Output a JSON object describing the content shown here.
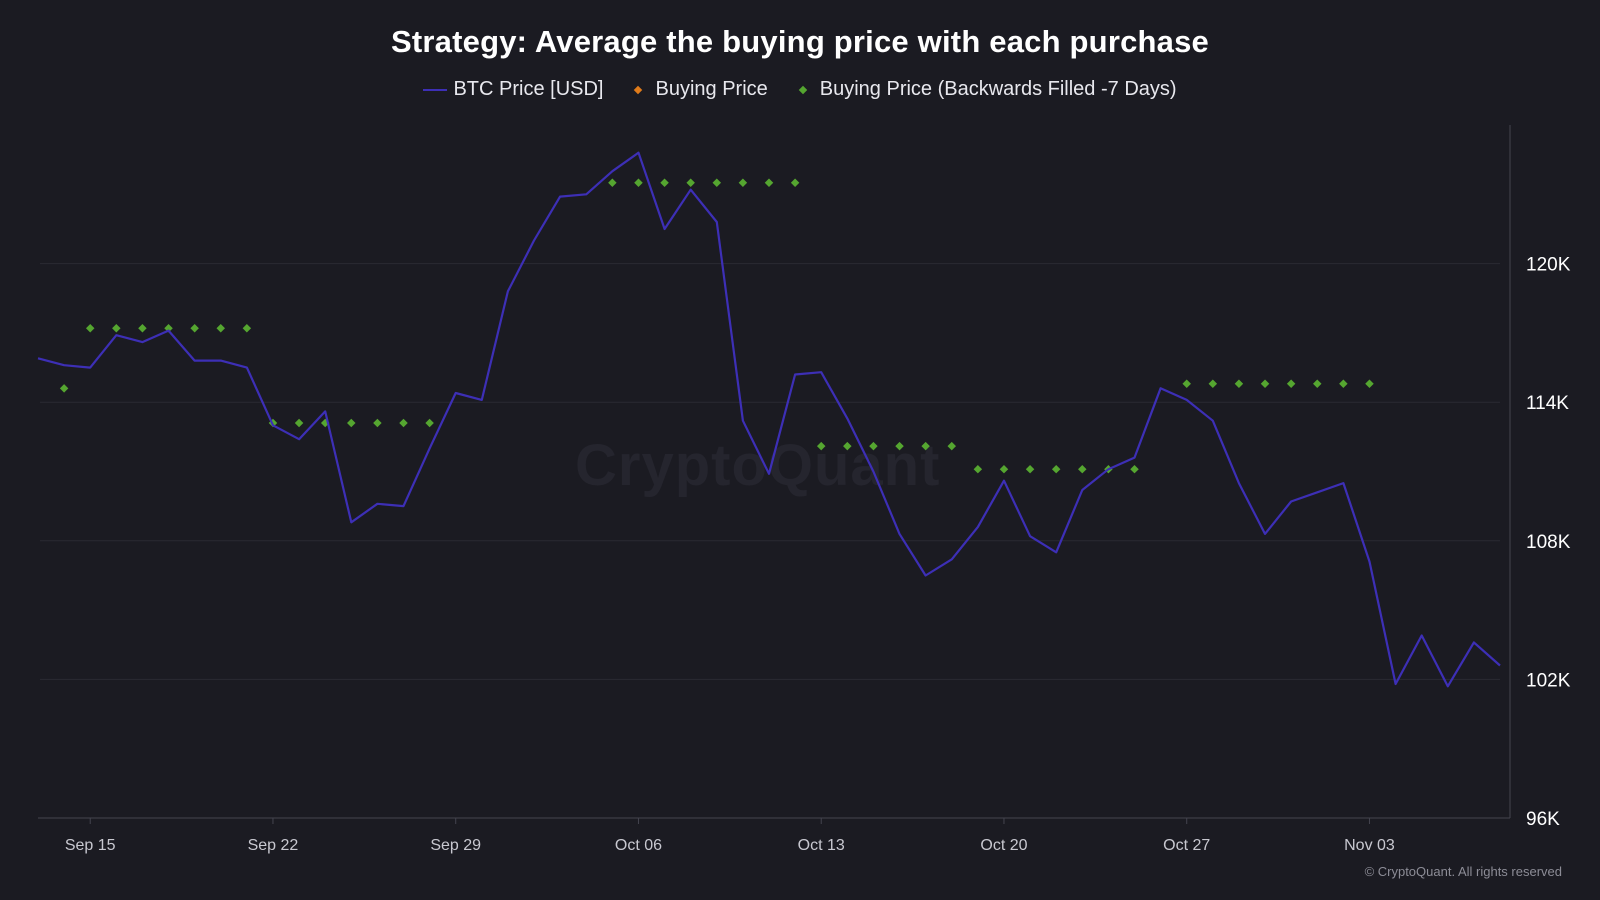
{
  "chart_data": {
    "type": "line",
    "title": "Strategy: Average the buying price with each purchase",
    "legend": {
      "placement": "top-center",
      "entries": [
        "BTC Price [USD]",
        "Buying Price",
        "Buying Price (Backwards Filled -7 Days)"
      ]
    },
    "colors": {
      "background": "#1b1b22",
      "btc_price": "#3d2fb6",
      "buying_price": "#e07b1a",
      "buying_price_filled": "#55a630",
      "grid": "#2b2b33",
      "axis": "#44444f",
      "tick_text": "#c8c8d0"
    },
    "x_axis": {
      "type": "date",
      "ticks": [
        "Sep 15",
        "Sep 22",
        "Sep 29",
        "Oct 06",
        "Oct 13",
        "Oct 20",
        "Oct 27",
        "Nov 03"
      ],
      "range": [
        "2025-09-13",
        "2025-11-08"
      ]
    },
    "y_axis": {
      "position": "right",
      "ticks": [
        "96K",
        "102K",
        "108K",
        "114K",
        "120K"
      ],
      "tick_values": [
        96000,
        102000,
        108000,
        114000,
        120000
      ],
      "range": [
        96000,
        126000
      ],
      "grid": true
    },
    "series": [
      {
        "name": "BTC Price [USD]",
        "style": "line",
        "x": [
          "2025-09-13",
          "2025-09-14",
          "2025-09-15",
          "2025-09-16",
          "2025-09-17",
          "2025-09-18",
          "2025-09-19",
          "2025-09-20",
          "2025-09-21",
          "2025-09-22",
          "2025-09-23",
          "2025-09-24",
          "2025-09-25",
          "2025-09-26",
          "2025-09-27",
          "2025-09-28",
          "2025-09-29",
          "2025-09-30",
          "2025-10-01",
          "2025-10-02",
          "2025-10-03",
          "2025-10-04",
          "2025-10-05",
          "2025-10-06",
          "2025-10-07",
          "2025-10-08",
          "2025-10-09",
          "2025-10-10",
          "2025-10-11",
          "2025-10-12",
          "2025-10-13",
          "2025-10-14",
          "2025-10-15",
          "2025-10-16",
          "2025-10-17",
          "2025-10-18",
          "2025-10-19",
          "2025-10-20",
          "2025-10-21",
          "2025-10-22",
          "2025-10-23",
          "2025-10-24",
          "2025-10-25",
          "2025-10-26",
          "2025-10-27",
          "2025-10-28",
          "2025-10-29",
          "2025-10-30",
          "2025-10-31",
          "2025-11-01",
          "2025-11-02",
          "2025-11-03",
          "2025-11-04",
          "2025-11-05",
          "2025-11-06",
          "2025-11-07",
          "2025-11-08"
        ],
        "values": [
          115900,
          115600,
          115500,
          116900,
          116600,
          117100,
          115800,
          115800,
          115500,
          113000,
          112400,
          113600,
          108800,
          109600,
          109500,
          112000,
          114400,
          114100,
          118800,
          121000,
          122900,
          123000,
          124000,
          124800,
          121500,
          123200,
          121800,
          113200,
          110900,
          115200,
          115300,
          113300,
          111000,
          108300,
          106500,
          107200,
          108600,
          110600,
          108200,
          107500,
          110200,
          111100,
          111600,
          114600,
          114100,
          113200,
          110500,
          108300,
          109700,
          110100,
          110500,
          107100,
          101800,
          103900,
          101700,
          103600,
          102600
        ]
      },
      {
        "name": "Buying Price",
        "style": "markers",
        "x": [],
        "values": []
      },
      {
        "name": "Buying Price (Backwards Filled -7 Days)",
        "style": "markers",
        "x": [
          "2025-09-14",
          "2025-09-15",
          "2025-09-16",
          "2025-09-17",
          "2025-09-18",
          "2025-09-19",
          "2025-09-20",
          "2025-09-21",
          "2025-09-22",
          "2025-09-23",
          "2025-09-24",
          "2025-09-25",
          "2025-09-26",
          "2025-09-27",
          "2025-09-28",
          "2025-10-05",
          "2025-10-06",
          "2025-10-07",
          "2025-10-08",
          "2025-10-09",
          "2025-10-10",
          "2025-10-11",
          "2025-10-12",
          "2025-10-13",
          "2025-10-14",
          "2025-10-15",
          "2025-10-16",
          "2025-10-17",
          "2025-10-18",
          "2025-10-19",
          "2025-10-20",
          "2025-10-21",
          "2025-10-22",
          "2025-10-23",
          "2025-10-24",
          "2025-10-25",
          "2025-10-27",
          "2025-10-28",
          "2025-10-29",
          "2025-10-30",
          "2025-10-31",
          "2025-11-01",
          "2025-11-02",
          "2025-11-03"
        ],
        "values": [
          114600,
          117200,
          117200,
          117200,
          117200,
          117200,
          117200,
          117200,
          113100,
          113100,
          113100,
          113100,
          113100,
          113100,
          113100,
          123500,
          123500,
          123500,
          123500,
          123500,
          123500,
          123500,
          123500,
          112100,
          112100,
          112100,
          112100,
          112100,
          112100,
          111100,
          111100,
          111100,
          111100,
          111100,
          111100,
          111100,
          114800,
          114800,
          114800,
          114800,
          114800,
          114800,
          114800,
          114800
        ]
      }
    ]
  },
  "watermark": "CryptoQuant",
  "copyright": "© CryptoQuant. All rights reserved"
}
